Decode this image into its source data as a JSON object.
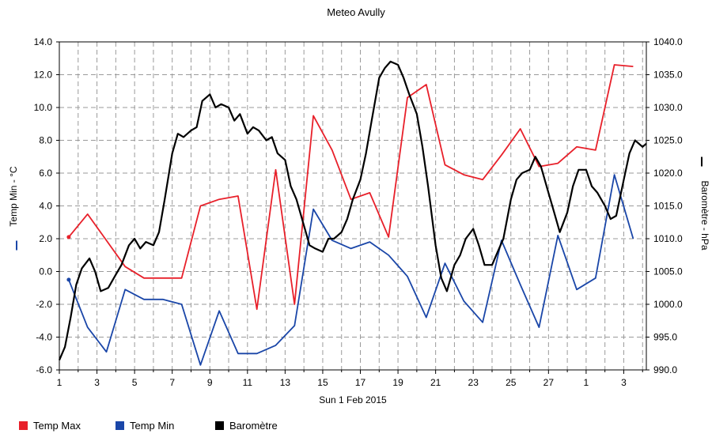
{
  "chart_data": {
    "type": "line",
    "title": "Meteo  Avully",
    "xlabel": "Sun 1 Feb 2015",
    "y_left_label": "Temp Min - °C",
    "y_right_label": "Baromètre - hPa",
    "x_tick_labels": [
      "1",
      "3",
      "5",
      "7",
      "9",
      "11",
      "13",
      "15",
      "17",
      "19",
      "21",
      "23",
      "25",
      "27",
      "1",
      "3"
    ],
    "x_range": [
      1,
      32.2
    ],
    "y_left_range": [
      -6,
      14
    ],
    "y_left_ticks": [
      "-6.0",
      "-4.0",
      "-2.0",
      "0.0",
      "2.0",
      "4.0",
      "6.0",
      "8.0",
      "10.0",
      "12.0",
      "14.0"
    ],
    "y_right_range": [
      990,
      1040
    ],
    "y_right_ticks": [
      "990.0",
      "995.0",
      "1000.0",
      "1005.0",
      "1010.0",
      "1015.0",
      "1020.0",
      "1025.0",
      "1030.0",
      "1035.0",
      "1040.0"
    ],
    "grid": true,
    "legend_placement": "bottom-left",
    "series": [
      {
        "name": "Temp Max",
        "axis": "left",
        "color": "#e8202a",
        "x": [
          1.5,
          2.5,
          3.5,
          4.5,
          5.5,
          6.5,
          7.5,
          8.5,
          9.5,
          10.5,
          11.5,
          12.5,
          13.5,
          14.5,
          15.5,
          16.5,
          17.5,
          18.5,
          19.5,
          20.5,
          21.5,
          22.5,
          23.5,
          24.5,
          25.5,
          26.5,
          27.5,
          28.5,
          29.5,
          30.5,
          31.5
        ],
        "values": [
          2.1,
          3.5,
          1.9,
          0.3,
          -0.4,
          -0.4,
          -0.4,
          4.0,
          4.4,
          4.6,
          -2.3,
          6.2,
          -2.0,
          9.5,
          7.4,
          4.4,
          4.8,
          2.1,
          10.6,
          11.4,
          6.5,
          5.9,
          5.6,
          7.1,
          8.7,
          6.4,
          6.6,
          7.6,
          7.4,
          12.6,
          12.5
        ]
      },
      {
        "name": "Temp Min",
        "axis": "left",
        "color": "#1a46a8",
        "x": [
          1.5,
          2.5,
          3.5,
          4.5,
          5.5,
          6.5,
          7.5,
          8.5,
          9.5,
          10.5,
          11.5,
          12.5,
          13.5,
          14.5,
          15.5,
          16.5,
          17.5,
          18.5,
          19.5,
          20.5,
          21.5,
          22.5,
          23.5,
          24.5,
          25.5,
          26.5,
          27.5,
          28.5,
          29.5,
          30.5,
          31.5
        ],
        "values": [
          -0.5,
          -3.4,
          -4.9,
          -1.1,
          -1.7,
          -1.7,
          -2.0,
          -5.7,
          -2.4,
          -5.0,
          -5.0,
          -4.5,
          -3.3,
          3.8,
          1.9,
          1.4,
          1.8,
          1.0,
          -0.3,
          -2.8,
          0.5,
          -1.8,
          -3.1,
          1.9,
          -0.8,
          -3.4,
          2.2,
          -1.1,
          -0.4,
          5.9,
          2.0
        ]
      },
      {
        "name": "Baromètre",
        "axis": "right",
        "color": "#000000",
        "x": [
          1.0,
          1.3,
          1.6,
          1.9,
          2.2,
          2.6,
          2.9,
          3.2,
          3.6,
          4.0,
          4.3,
          4.7,
          5.0,
          5.3,
          5.6,
          6.0,
          6.3,
          6.6,
          7.0,
          7.3,
          7.6,
          8.0,
          8.3,
          8.6,
          9.0,
          9.3,
          9.6,
          10.0,
          10.3,
          10.6,
          11.0,
          11.3,
          11.6,
          12.0,
          12.3,
          12.6,
          13.0,
          13.3,
          13.6,
          14.0,
          14.3,
          14.6,
          15.0,
          15.3,
          15.6,
          16.0,
          16.3,
          16.6,
          17.0,
          17.3,
          17.6,
          18.0,
          18.3,
          18.6,
          19.0,
          19.3,
          19.6,
          20.0,
          20.3,
          20.6,
          21.0,
          21.3,
          21.6,
          22.0,
          22.3,
          22.6,
          23.0,
          23.3,
          23.6,
          24.0,
          24.3,
          24.6,
          25.0,
          25.3,
          25.6,
          26.0,
          26.3,
          26.6,
          27.0,
          27.3,
          27.6,
          28.0,
          28.3,
          28.6,
          29.0,
          29.3,
          29.6,
          30.0,
          30.3,
          30.6,
          31.0,
          31.3,
          31.6,
          32.0,
          32.2
        ],
        "values": [
          991.5,
          993.5,
          998.0,
          1003.0,
          1005.5,
          1007.0,
          1005.0,
          1002.0,
          1002.5,
          1004.5,
          1006.0,
          1009.0,
          1010.0,
          1008.5,
          1009.5,
          1009.0,
          1011.0,
          1016.0,
          1023.0,
          1026.0,
          1025.5,
          1026.5,
          1027.0,
          1031.0,
          1032.0,
          1030.0,
          1030.5,
          1030.0,
          1028.0,
          1029.0,
          1026.0,
          1027.0,
          1026.5,
          1025.0,
          1025.5,
          1023.0,
          1022.0,
          1018.0,
          1016.0,
          1012.0,
          1009.0,
          1008.5,
          1008.0,
          1010.0,
          1010.0,
          1011.0,
          1013.0,
          1016.0,
          1019.0,
          1023.0,
          1028.0,
          1034.5,
          1036.0,
          1037.0,
          1036.5,
          1034.5,
          1032.0,
          1029.0,
          1024.0,
          1018.0,
          1009.0,
          1004.0,
          1002.0,
          1006.0,
          1007.5,
          1010.0,
          1011.5,
          1009.0,
          1006.0,
          1006.0,
          1008.0,
          1010.0,
          1016.0,
          1019.0,
          1020.0,
          1020.5,
          1022.5,
          1021.0,
          1017.0,
          1014.0,
          1011.0,
          1014.0,
          1018.0,
          1020.5,
          1020.5,
          1018.0,
          1017.0,
          1015.0,
          1013.0,
          1013.5,
          1019.0,
          1023.0,
          1025.0,
          1024.0,
          1024.5
        ]
      }
    ]
  }
}
